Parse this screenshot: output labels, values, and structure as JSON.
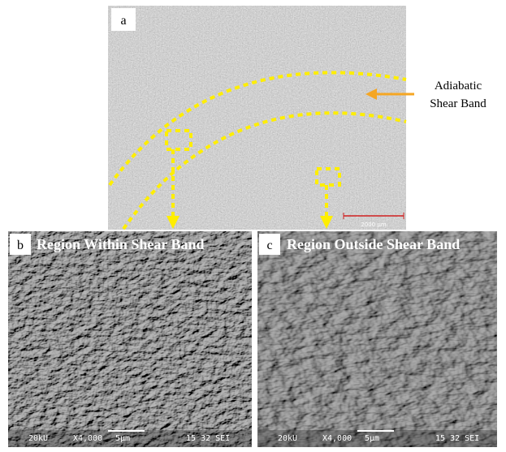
{
  "panel_a": {
    "label": "a",
    "scale_bar": "2000 µm",
    "annotation": [
      "Adiabatic",
      "Shear Band"
    ]
  },
  "panel_b": {
    "label": "b",
    "title": "Region Within Shear Band",
    "footer": [
      "20kU",
      "X4,000",
      "5µm",
      "15 32 SEI"
    ]
  },
  "panel_c": {
    "label": "c",
    "title": "Region Outside Shear Band",
    "footer": [
      "20kU",
      "X4,000",
      "5µm",
      "15 32 SEI"
    ]
  }
}
